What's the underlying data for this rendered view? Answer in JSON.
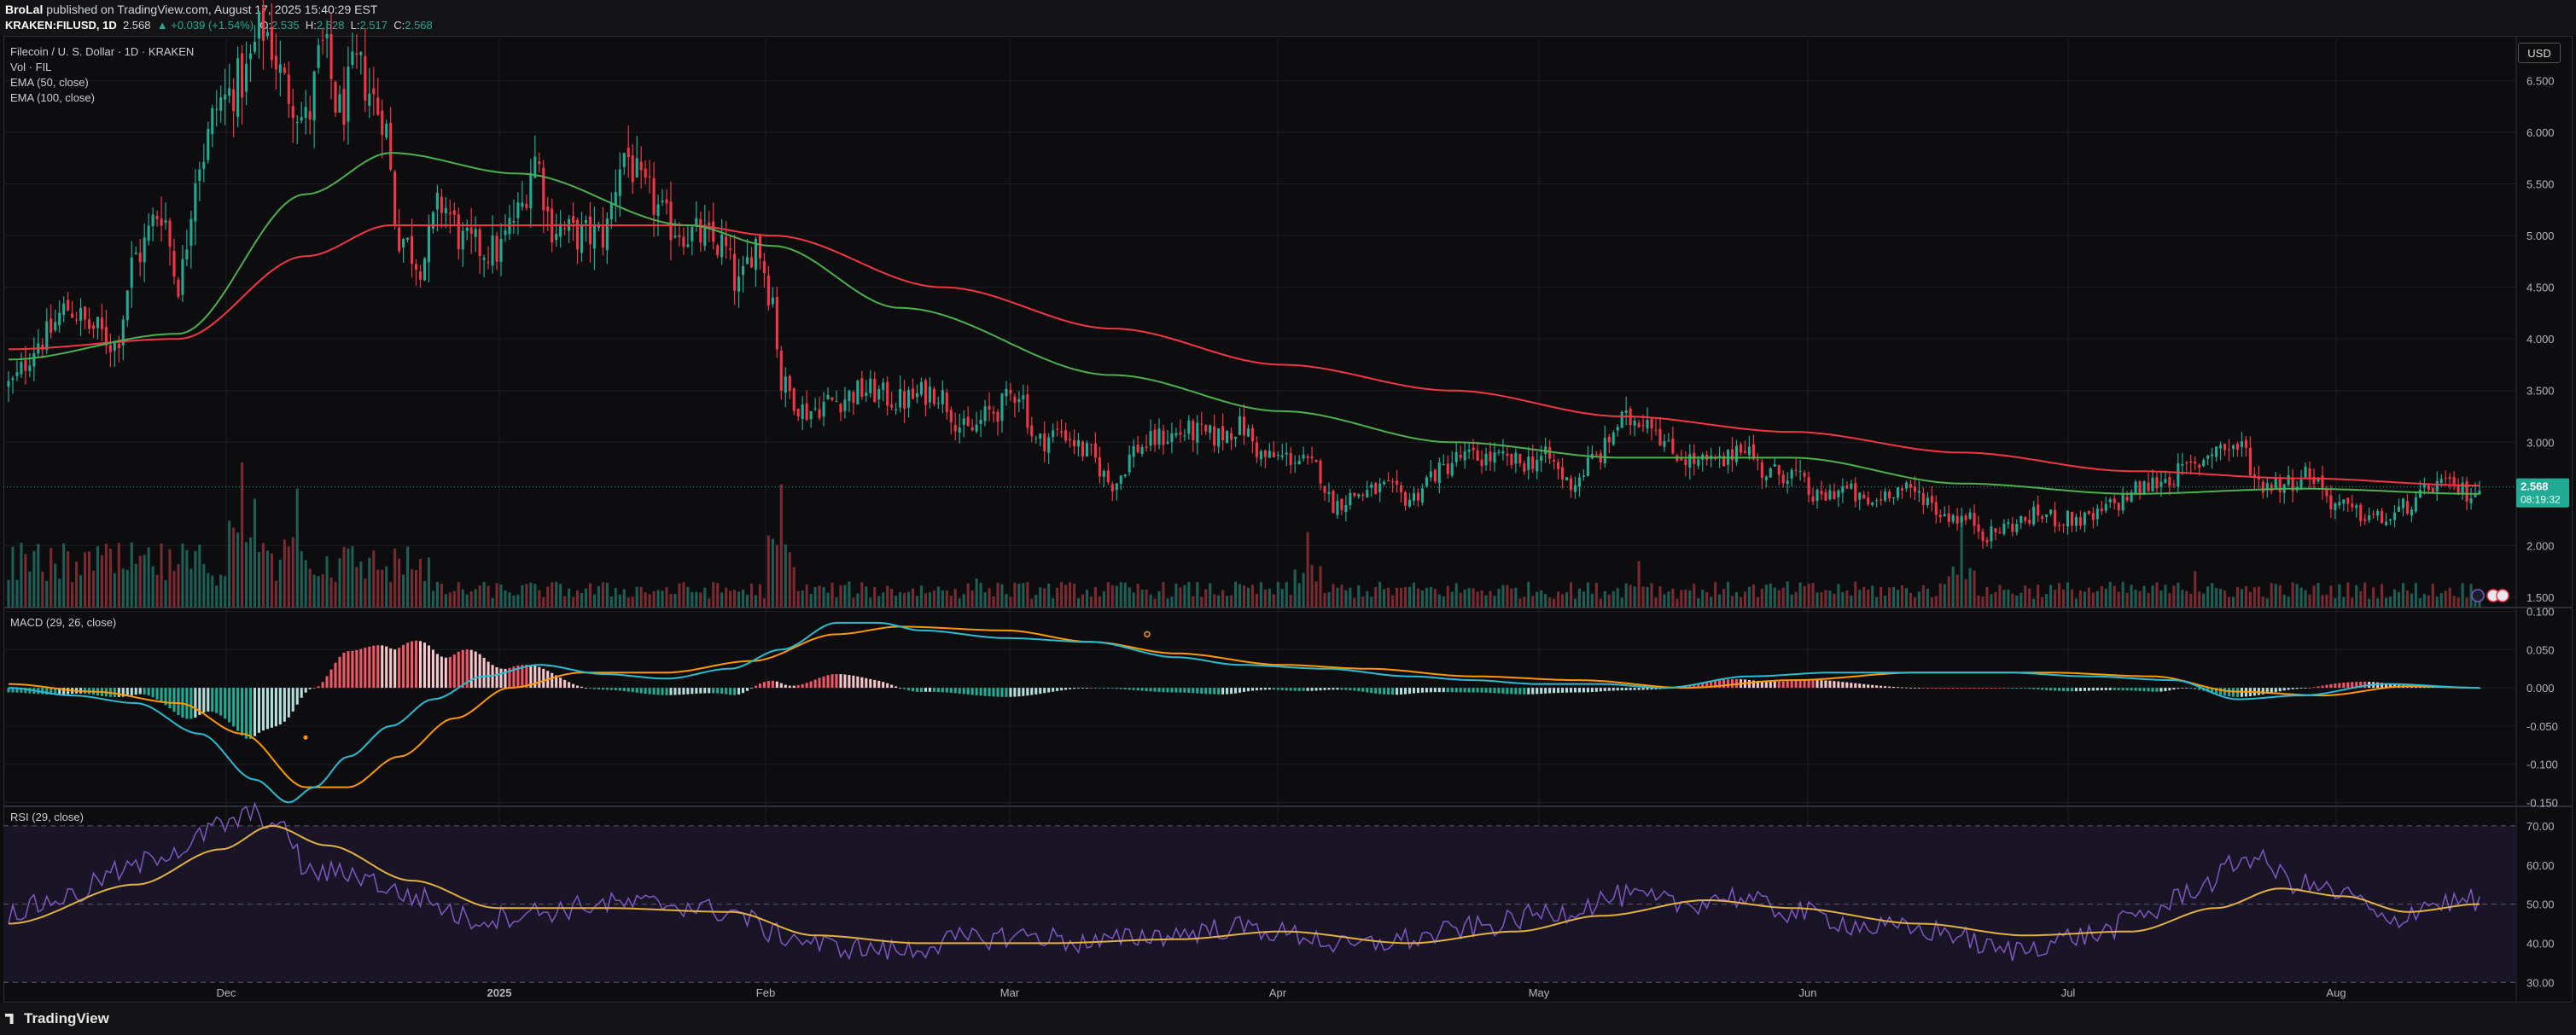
{
  "header": {
    "publisher": "BroLal",
    "published_text": "published on TradingView.com, August 17, 2025 15:40:29 EST",
    "symbol": "KRAKEN:FILUSD, 1D",
    "last": "2.568",
    "change": "▲ +0.039 (+1.54%)",
    "ohlc_o_label": "O:",
    "ohlc_o": "2.535",
    "ohlc_h_label": "H:",
    "ohlc_h": "2.628",
    "ohlc_l_label": "L:",
    "ohlc_l": "2.517",
    "ohlc_c_label": "C:",
    "ohlc_c": "2.568"
  },
  "legend": {
    "title": "Filecoin / U. S. Dollar · 1D · KRAKEN",
    "vol": "Vol · FIL",
    "ema50": "EMA (50, close)",
    "ema100": "EMA (100, close)",
    "macd": "MACD (29, 26, close)",
    "rsi": "RSI (29, close)"
  },
  "currency_button": "USD",
  "footer": {
    "brand": "TradingView"
  },
  "colors": {
    "up": "#22ab94",
    "down": "#f23645",
    "ema50": "#4caf50",
    "ema100": "#f23645",
    "macd_line": "#2bbcd4",
    "signal_line": "#ff9800",
    "rsi_line": "#7e57c2",
    "rsi_ma": "#e0b040"
  },
  "chart_data": [
    {
      "type": "candlestick",
      "title": "Filecoin / U. S. Dollar · 1D · KRAKEN",
      "x_ticks": [
        "Dec",
        "2025",
        "Feb",
        "Mar",
        "Apr",
        "May",
        "Jun",
        "Jul",
        "Aug"
      ],
      "y_ticks": [
        "6.500",
        "6.000",
        "5.500",
        "5.000",
        "4.500",
        "4.000",
        "3.500",
        "3.000",
        "2.000",
        "1.500"
      ],
      "ylim": [
        1.4,
        6.9
      ],
      "last_price_label": "2.568",
      "countdown_label": "08:19:32",
      "price_anchors": [
        [
          0,
          3.55
        ],
        [
          8,
          4.0
        ],
        [
          14,
          4.3
        ],
        [
          20,
          4.1
        ],
        [
          25,
          3.95
        ],
        [
          30,
          4.8
        ],
        [
          36,
          5.25
        ],
        [
          40,
          4.55
        ],
        [
          45,
          5.75
        ],
        [
          50,
          6.3
        ],
        [
          55,
          6.5
        ],
        [
          60,
          7.0
        ],
        [
          66,
          6.4
        ],
        [
          70,
          6.1
        ],
        [
          74,
          6.8
        ],
        [
          78,
          6.2
        ],
        [
          82,
          6.6
        ],
        [
          88,
          6.2
        ],
        [
          92,
          5.0
        ],
        [
          97,
          4.75
        ],
        [
          102,
          5.3
        ],
        [
          108,
          4.9
        ],
        [
          115,
          4.85
        ],
        [
          120,
          5.2
        ],
        [
          124,
          5.75
        ],
        [
          128,
          5.1
        ],
        [
          134,
          5.0
        ],
        [
          140,
          5.0
        ],
        [
          145,
          5.8
        ],
        [
          150,
          5.4
        ],
        [
          156,
          5.1
        ],
        [
          162,
          5.0
        ],
        [
          168,
          4.9
        ],
        [
          172,
          4.5
        ],
        [
          176,
          4.95
        ],
        [
          180,
          4.4
        ],
        [
          182,
          3.55
        ],
        [
          188,
          3.3
        ],
        [
          194,
          3.4
        ],
        [
          202,
          3.5
        ],
        [
          210,
          3.4
        ],
        [
          218,
          3.5
        ],
        [
          226,
          3.1
        ],
        [
          232,
          3.3
        ],
        [
          238,
          3.5
        ],
        [
          242,
          3.0
        ],
        [
          248,
          3.1
        ],
        [
          254,
          2.9
        ],
        [
          260,
          2.6
        ],
        [
          266,
          2.95
        ],
        [
          272,
          3.05
        ],
        [
          278,
          3.1
        ],
        [
          284,
          3.05
        ],
        [
          290,
          3.15
        ],
        [
          296,
          2.85
        ],
        [
          302,
          2.85
        ],
        [
          308,
          2.75
        ],
        [
          312,
          2.4
        ],
        [
          318,
          2.5
        ],
        [
          324,
          2.55
        ],
        [
          330,
          2.45
        ],
        [
          336,
          2.7
        ],
        [
          342,
          2.85
        ],
        [
          348,
          2.85
        ],
        [
          356,
          2.8
        ],
        [
          362,
          2.85
        ],
        [
          368,
          2.6
        ],
        [
          374,
          2.85
        ],
        [
          380,
          3.2
        ],
        [
          386,
          3.25
        ],
        [
          392,
          2.9
        ],
        [
          398,
          2.8
        ],
        [
          404,
          2.8
        ],
        [
          408,
          3.0
        ],
        [
          414,
          2.7
        ],
        [
          420,
          2.7
        ],
        [
          426,
          2.45
        ],
        [
          432,
          2.55
        ],
        [
          438,
          2.4
        ],
        [
          444,
          2.55
        ],
        [
          450,
          2.5
        ],
        [
          456,
          2.3
        ],
        [
          462,
          2.25
        ],
        [
          466,
          2.1
        ],
        [
          472,
          2.2
        ],
        [
          478,
          2.3
        ],
        [
          484,
          2.25
        ],
        [
          490,
          2.25
        ],
        [
          496,
          2.4
        ],
        [
          502,
          2.55
        ],
        [
          508,
          2.65
        ],
        [
          514,
          2.75
        ],
        [
          520,
          2.95
        ],
        [
          526,
          2.95
        ],
        [
          530,
          2.6
        ],
        [
          536,
          2.6
        ],
        [
          542,
          2.7
        ],
        [
          548,
          2.4
        ],
        [
          554,
          2.3
        ],
        [
          560,
          2.25
        ],
        [
          566,
          2.4
        ],
        [
          572,
          2.6
        ],
        [
          576,
          2.55
        ],
        [
          580,
          2.5
        ],
        [
          582,
          2.57
        ]
      ],
      "ema50_anchors": [
        [
          0,
          3.8
        ],
        [
          40,
          4.05
        ],
        [
          70,
          5.4
        ],
        [
          90,
          5.8
        ],
        [
          120,
          5.6
        ],
        [
          160,
          5.1
        ],
        [
          180,
          4.9
        ],
        [
          210,
          4.3
        ],
        [
          260,
          3.65
        ],
        [
          300,
          3.3
        ],
        [
          340,
          3.0
        ],
        [
          380,
          2.85
        ],
        [
          420,
          2.85
        ],
        [
          460,
          2.6
        ],
        [
          500,
          2.5
        ],
        [
          540,
          2.55
        ],
        [
          582,
          2.5
        ]
      ],
      "ema100_anchors": [
        [
          0,
          3.9
        ],
        [
          40,
          4.0
        ],
        [
          70,
          4.8
        ],
        [
          90,
          5.1
        ],
        [
          120,
          5.1
        ],
        [
          160,
          5.1
        ],
        [
          180,
          5.0
        ],
        [
          220,
          4.5
        ],
        [
          260,
          4.1
        ],
        [
          300,
          3.75
        ],
        [
          340,
          3.5
        ],
        [
          380,
          3.25
        ],
        [
          420,
          3.1
        ],
        [
          460,
          2.9
        ],
        [
          500,
          2.72
        ],
        [
          540,
          2.65
        ],
        [
          582,
          2.58
        ]
      ],
      "volume_spikes": [
        [
          55,
          1.0
        ],
        [
          58,
          0.75
        ],
        [
          68,
          0.82
        ],
        [
          182,
          0.85
        ],
        [
          306,
          0.52
        ],
        [
          384,
          0.32
        ],
        [
          460,
          0.62
        ],
        [
          515,
          0.25
        ],
        [
          228,
          0.2
        ]
      ]
    },
    {
      "type": "line",
      "title": "MACD (29, 26, close)",
      "y_ticks": [
        "0.100",
        "0.050",
        "0.000",
        "-0.050",
        "-0.100",
        "-0.150"
      ],
      "ylim": [
        -0.155,
        0.105
      ],
      "macd_anchors": [
        [
          0,
          0.0
        ],
        [
          15,
          -0.01
        ],
        [
          30,
          -0.02
        ],
        [
          45,
          -0.06
        ],
        [
          58,
          -0.12
        ],
        [
          66,
          -0.15
        ],
        [
          72,
          -0.13
        ],
        [
          80,
          -0.09
        ],
        [
          90,
          -0.05
        ],
        [
          100,
          -0.015
        ],
        [
          112,
          0.015
        ],
        [
          125,
          0.03
        ],
        [
          140,
          0.018
        ],
        [
          155,
          0.012
        ],
        [
          170,
          0.025
        ],
        [
          182,
          0.05
        ],
        [
          195,
          0.085
        ],
        [
          205,
          0.085
        ],
        [
          215,
          0.075
        ],
        [
          235,
          0.065
        ],
        [
          255,
          0.06
        ],
        [
          275,
          0.04
        ],
        [
          290,
          0.03
        ],
        [
          310,
          0.025
        ],
        [
          330,
          0.015
        ],
        [
          345,
          0.01
        ],
        [
          360,
          0.005
        ],
        [
          375,
          0.005
        ],
        [
          390,
          0.0
        ],
        [
          410,
          0.015
        ],
        [
          430,
          0.02
        ],
        [
          450,
          0.02
        ],
        [
          470,
          0.02
        ],
        [
          490,
          0.015
        ],
        [
          510,
          0.01
        ],
        [
          525,
          -0.015
        ],
        [
          540,
          -0.01
        ],
        [
          560,
          0.005
        ],
        [
          582,
          0.0
        ]
      ],
      "signal_anchors": [
        [
          0,
          0.005
        ],
        [
          20,
          -0.005
        ],
        [
          40,
          -0.02
        ],
        [
          55,
          -0.06
        ],
        [
          70,
          -0.13
        ],
        [
          80,
          -0.13
        ],
        [
          92,
          -0.09
        ],
        [
          105,
          -0.04
        ],
        [
          118,
          0.0
        ],
        [
          135,
          0.02
        ],
        [
          155,
          0.02
        ],
        [
          175,
          0.035
        ],
        [
          195,
          0.07
        ],
        [
          210,
          0.08
        ],
        [
          235,
          0.075
        ],
        [
          255,
          0.06
        ],
        [
          275,
          0.045
        ],
        [
          300,
          0.03
        ],
        [
          320,
          0.025
        ],
        [
          345,
          0.015
        ],
        [
          370,
          0.01
        ],
        [
          395,
          0.0
        ],
        [
          420,
          0.01
        ],
        [
          450,
          0.02
        ],
        [
          480,
          0.02
        ],
        [
          505,
          0.015
        ],
        [
          525,
          -0.005
        ],
        [
          545,
          -0.01
        ],
        [
          565,
          0.002
        ],
        [
          582,
          0.0
        ]
      ]
    },
    {
      "type": "line",
      "title": "RSI (29, close)",
      "y_ticks": [
        "70.00",
        "60.00",
        "50.00",
        "40.00",
        "30.00"
      ],
      "ylim": [
        27,
        75
      ],
      "rsi_anchors": [
        [
          0,
          48
        ],
        [
          15,
          52
        ],
        [
          25,
          58
        ],
        [
          40,
          64
        ],
        [
          50,
          70
        ],
        [
          58,
          73
        ],
        [
          66,
          68
        ],
        [
          70,
          58
        ],
        [
          80,
          58
        ],
        [
          95,
          52
        ],
        [
          110,
          46
        ],
        [
          125,
          48
        ],
        [
          140,
          50
        ],
        [
          155,
          50
        ],
        [
          170,
          48
        ],
        [
          182,
          42
        ],
        [
          195,
          39
        ],
        [
          210,
          38
        ],
        [
          225,
          41
        ],
        [
          240,
          42
        ],
        [
          255,
          40
        ],
        [
          270,
          42
        ],
        [
          290,
          44
        ],
        [
          305,
          42
        ],
        [
          315,
          39
        ],
        [
          330,
          41
        ],
        [
          345,
          44
        ],
        [
          365,
          48
        ],
        [
          380,
          52
        ],
        [
          395,
          50
        ],
        [
          405,
          52
        ],
        [
          420,
          48
        ],
        [
          440,
          44
        ],
        [
          455,
          43
        ],
        [
          470,
          38
        ],
        [
          490,
          42
        ],
        [
          505,
          48
        ],
        [
          515,
          54
        ],
        [
          528,
          62
        ],
        [
          540,
          55
        ],
        [
          552,
          52
        ],
        [
          560,
          45
        ],
        [
          570,
          50
        ],
        [
          582,
          51
        ]
      ],
      "rsi_ma_anchors": [
        [
          0,
          45
        ],
        [
          30,
          55
        ],
        [
          50,
          64
        ],
        [
          62,
          70
        ],
        [
          75,
          65
        ],
        [
          95,
          56
        ],
        [
          115,
          49
        ],
        [
          140,
          49
        ],
        [
          170,
          48
        ],
        [
          190,
          42
        ],
        [
          215,
          40
        ],
        [
          245,
          40
        ],
        [
          275,
          41
        ],
        [
          300,
          43
        ],
        [
          330,
          40
        ],
        [
          355,
          43
        ],
        [
          375,
          47
        ],
        [
          400,
          51
        ],
        [
          420,
          49
        ],
        [
          450,
          45
        ],
        [
          475,
          42
        ],
        [
          500,
          43
        ],
        [
          520,
          49
        ],
        [
          535,
          54
        ],
        [
          550,
          52
        ],
        [
          565,
          48
        ],
        [
          582,
          50
        ]
      ]
    }
  ]
}
